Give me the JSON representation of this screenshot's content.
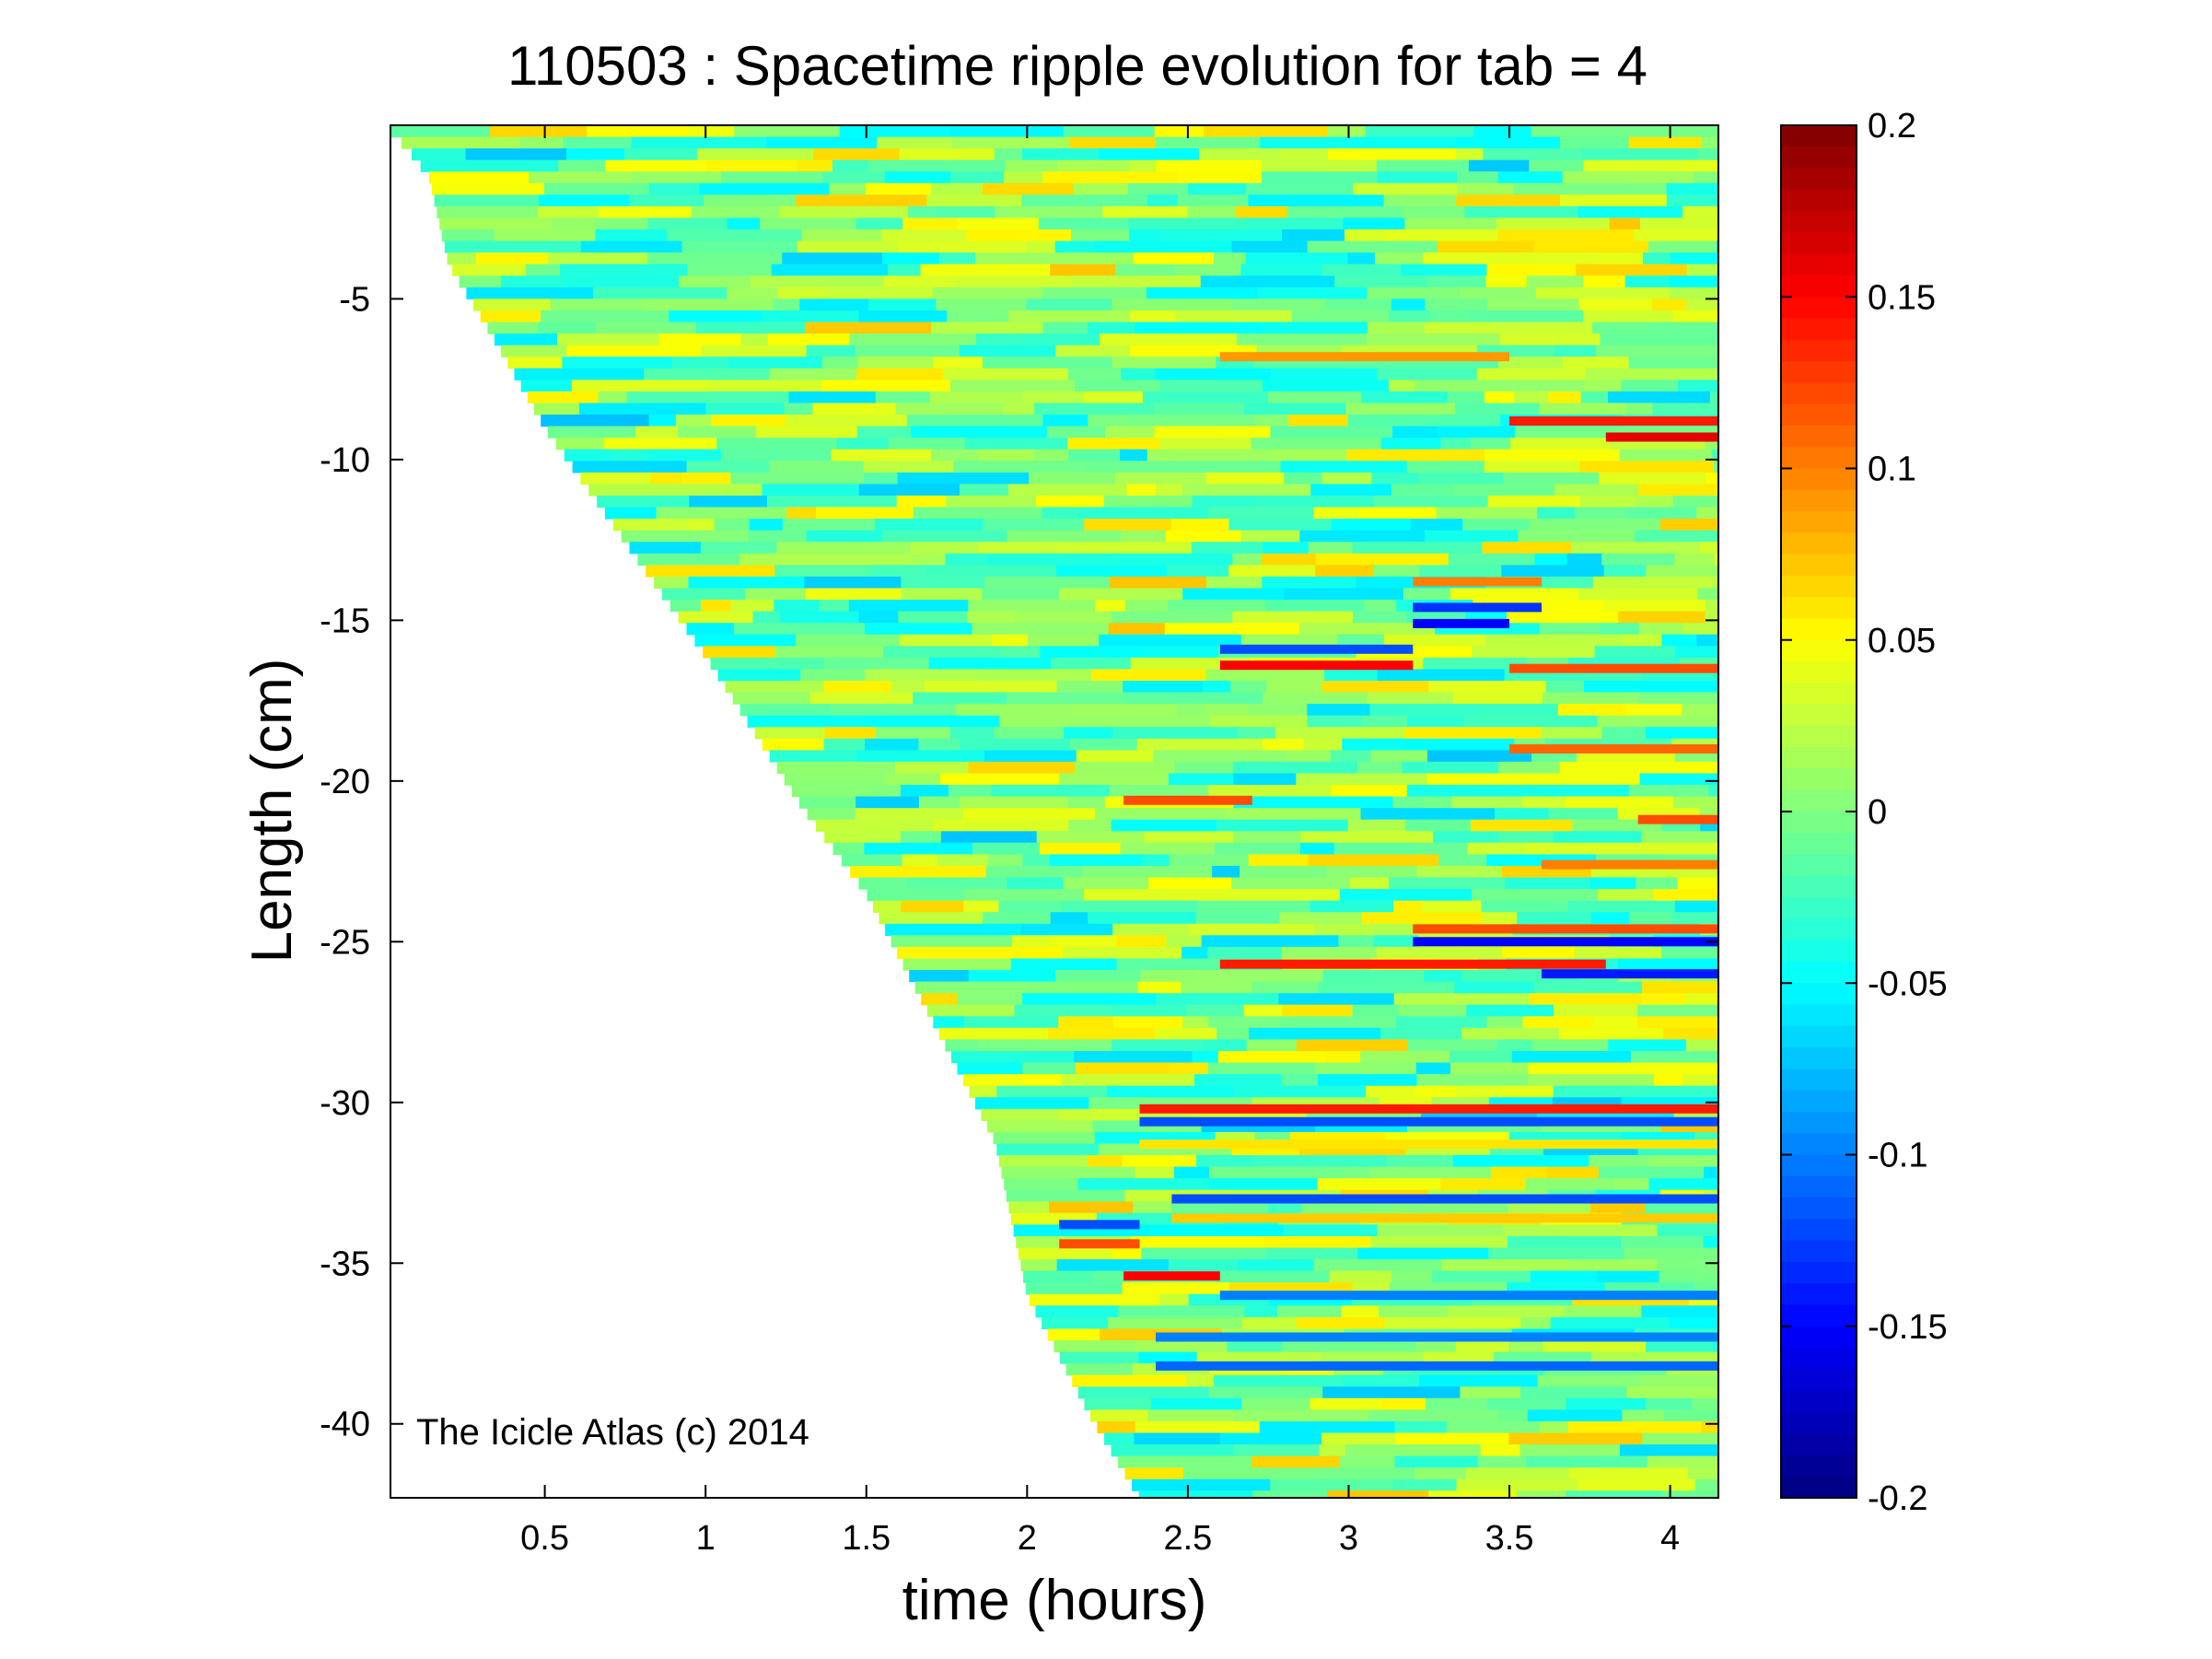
{
  "chart_data": {
    "type": "heatmap",
    "title": "110503 : Spacetime ripple evolution for tab = 4",
    "xlabel": "time (hours)",
    "ylabel": "Length (cm)",
    "xlim": [
      0.02,
      4.15
    ],
    "ylim": [
      -42.3,
      0.4
    ],
    "xticks": [
      0.5,
      1,
      1.5,
      2,
      2.5,
      3,
      3.5,
      4
    ],
    "xtick_labels": [
      "0.5",
      "1",
      "1.5",
      "2",
      "2.5",
      "3",
      "3.5",
      "4"
    ],
    "yticks": [
      -40,
      -35,
      -30,
      -25,
      -20,
      -15,
      -10,
      -5
    ],
    "ytick_labels": [
      "-40",
      "-35",
      "-30",
      "-25",
      "-20",
      "-15",
      "-10",
      "-5"
    ],
    "colorbar": {
      "colormap": "jet",
      "clim": [
        -0.2,
        0.2
      ],
      "ticks": [
        0.2,
        0.15,
        0.1,
        0.05,
        0,
        -0.05,
        -0.1,
        -0.15,
        -0.2
      ],
      "tick_labels": [
        "0.2",
        "0.15",
        "0.1",
        "0.05",
        "0",
        "-0.05",
        "-0.1",
        "-0.15",
        "-0.2"
      ]
    },
    "growth_front": {
      "description_points_time": [
        0.02,
        0.07,
        0.14,
        0.2,
        0.34,
        0.5,
        0.69,
        1.0,
        1.3,
        1.5,
        1.9,
        2.0,
        2.2,
        2.35
      ],
      "description_points_length": [
        0.2,
        -0.3,
        -1.2,
        -3.9,
        -6.2,
        -9.0,
        -11.7,
        -16.1,
        -20.8,
        -23.5,
        -31.2,
        -36.0,
        -39.8,
        -42.3
      ]
    },
    "bands": [
      {
        "t0": 2.35,
        "t1": 4.15,
        "y": -30.2,
        "v": 0.14
      },
      {
        "t0": 2.35,
        "t1": 4.15,
        "y": -30.6,
        "v": -0.12
      },
      {
        "t0": 2.35,
        "t1": 4.15,
        "y": -31.3,
        "v": 0.06
      },
      {
        "t0": 2.45,
        "t1": 4.15,
        "y": -33.0,
        "v": -0.12
      },
      {
        "t0": 2.45,
        "t1": 4.15,
        "y": -33.6,
        "v": 0.07
      },
      {
        "t0": 2.3,
        "t1": 2.6,
        "y": -35.4,
        "v": 0.15
      },
      {
        "t0": 2.6,
        "t1": 4.15,
        "y": -36.0,
        "v": -0.1
      },
      {
        "t0": 2.4,
        "t1": 4.15,
        "y": -37.3,
        "v": -0.1
      },
      {
        "t0": 2.4,
        "t1": 4.15,
        "y": -38.2,
        "v": -0.11
      },
      {
        "t0": 2.6,
        "t1": 3.8,
        "y": -25.7,
        "v": 0.14
      },
      {
        "t0": 3.2,
        "t1": 4.15,
        "y": -24.6,
        "v": 0.12
      },
      {
        "t0": 3.2,
        "t1": 4.15,
        "y": -25.0,
        "v": -0.15
      },
      {
        "t0": 2.6,
        "t1": 3.2,
        "y": -16.4,
        "v": 0.15
      },
      {
        "t0": 2.6,
        "t1": 3.2,
        "y": -15.9,
        "v": -0.12
      },
      {
        "t0": 3.2,
        "t1": 3.5,
        "y": -15.1,
        "v": -0.15
      },
      {
        "t0": 3.5,
        "t1": 4.15,
        "y": -16.5,
        "v": 0.12
      },
      {
        "t0": 3.5,
        "t1": 4.15,
        "y": -8.8,
        "v": 0.14
      },
      {
        "t0": 3.8,
        "t1": 4.15,
        "y": -9.3,
        "v": 0.16
      },
      {
        "t0": 2.6,
        "t1": 3.5,
        "y": -6.8,
        "v": 0.09
      },
      {
        "t0": 3.9,
        "t1": 4.15,
        "y": -21.2,
        "v": 0.12
      },
      {
        "t0": 3.6,
        "t1": 4.15,
        "y": -22.6,
        "v": 0.1
      },
      {
        "t0": 3.6,
        "t1": 4.15,
        "y": -26.0,
        "v": -0.14
      },
      {
        "t0": 2.3,
        "t1": 2.7,
        "y": -20.6,
        "v": 0.12
      },
      {
        "t0": 2.1,
        "t1": 2.35,
        "y": -33.8,
        "v": -0.12
      },
      {
        "t0": 2.1,
        "t1": 2.35,
        "y": -34.4,
        "v": 0.12
      },
      {
        "t0": 3.5,
        "t1": 4.15,
        "y": -19.0,
        "v": 0.11
      },
      {
        "t0": 3.2,
        "t1": 3.6,
        "y": -13.8,
        "v": 0.1
      },
      {
        "t0": 3.2,
        "t1": 3.6,
        "y": -14.6,
        "v": -0.13
      }
    ]
  },
  "watermark": "The Icicle Atlas (c) 2014"
}
